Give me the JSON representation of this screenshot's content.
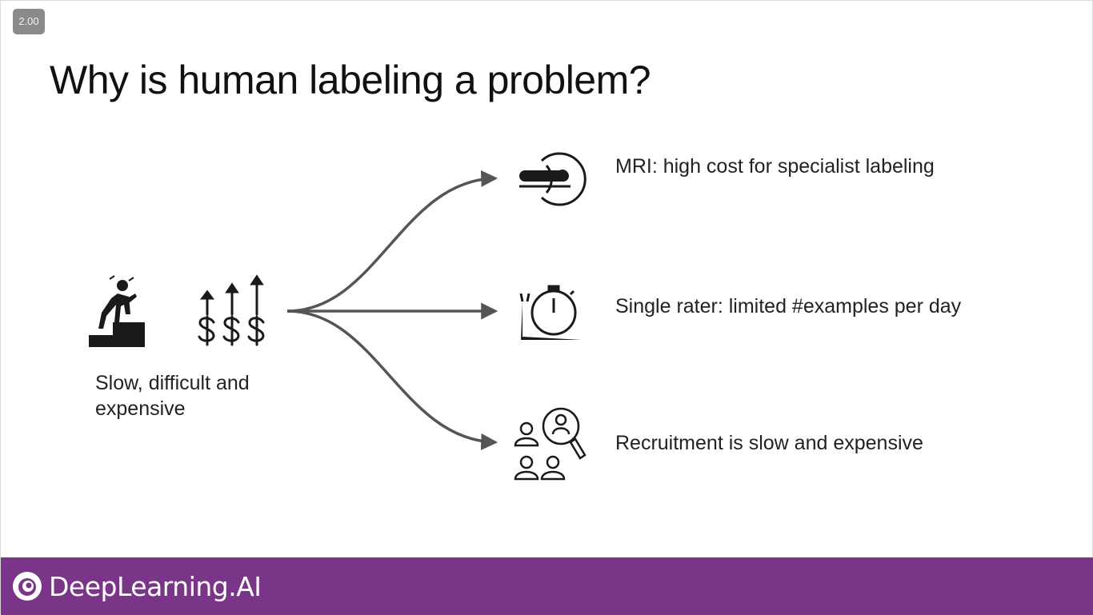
{
  "player": {
    "speed_label": "2.00"
  },
  "slide": {
    "title": "Why is human labeling a problem?",
    "caption": "Slow, difficult and expensive",
    "source_icons": [
      "tired-climber-icon",
      "rising-cost-icon"
    ],
    "items": [
      {
        "icon": "mri-scanner-icon",
        "label": "MRI: high cost for specialist labeling"
      },
      {
        "icon": "slow-stopwatch-icon",
        "label": "Single rater: limited #examples per day"
      },
      {
        "icon": "recruitment-search-icon",
        "label": "Recruitment is slow and expensive"
      }
    ]
  },
  "footer": {
    "brand": "DeepLearning.AI",
    "background_color": "#7b3588"
  },
  "colors": {
    "arrow": "#555555",
    "icon": "#1a1a1a"
  }
}
